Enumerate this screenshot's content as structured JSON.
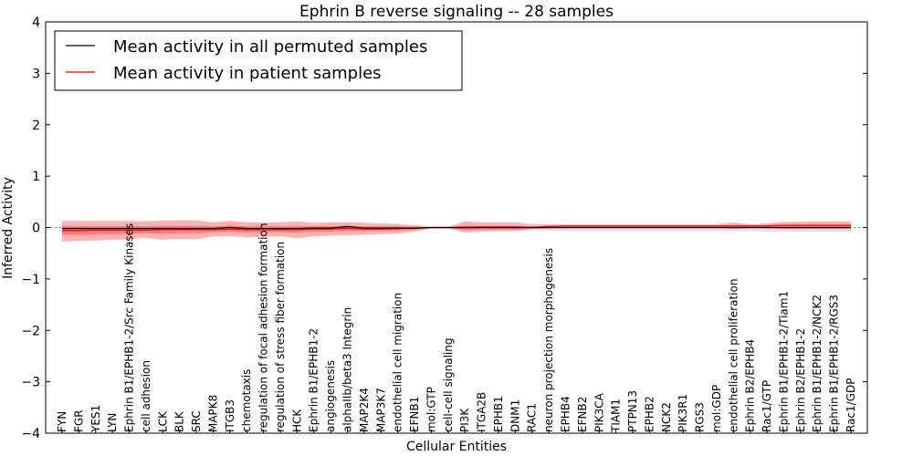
{
  "chart_data": {
    "type": "line",
    "title": "Ephrin B reverse signaling -- 28 samples",
    "xlabel": "Cellular Entities",
    "ylabel": "Inferred Activity",
    "ylim": [
      -4,
      4
    ],
    "yticks": [
      -4,
      -3,
      -2,
      -1,
      0,
      1,
      2,
      3,
      4
    ],
    "ytick_labels": [
      "−4",
      "−3",
      "−2",
      "−1",
      "0",
      "1",
      "2",
      "3",
      "4"
    ],
    "legend_position": "top-left",
    "categories": [
      "FYN",
      "FGR",
      "YES1",
      "LYN",
      "Ephrin B1/EPHB1-2/Src Family Kinases",
      "cell adhesion",
      "LCK",
      "BLK",
      "SRC",
      "MAPK8",
      "ITGB3",
      "chemotaxis",
      "regulation of focal adhesion formation",
      "regulation of stress fiber formation",
      "HCK",
      "Ephrin B1/EPHB1-2",
      "angiogenesis",
      "alphaIIb/beta3 Integrin",
      "MAP2K4",
      "MAP3K7",
      "endothelial cell migration",
      "EFNB1",
      "mol:GTP",
      "cell-cell signaling",
      "PI3K",
      "ITGA2B",
      "EPHB1",
      "DNM1",
      "RAC1",
      "neuron projection morphogenesis",
      "EPHB4",
      "EFNB2",
      "PIK3CA",
      "TIAM1",
      "PTPN13",
      "EPHB2",
      "NCK2",
      "PIK3R1",
      "RGS3",
      "mol:GDP",
      "endothelial cell proliferation",
      "Ephrin B2/EPHB4",
      "Rac1/GTP",
      "Ephrin B1/EPHB1-2/Tiam1",
      "Ephrin B2/EPHB1-2",
      "Ephrin B1/EPHB1-2/NCK2",
      "Ephrin B1/EPHB1-2/RGS3",
      "Rac1/GDP"
    ],
    "series": [
      {
        "name": "Mean activity in all permuted samples",
        "color": "#000000",
        "values": [
          -0.02,
          -0.02,
          -0.02,
          -0.02,
          -0.02,
          -0.02,
          -0.02,
          -0.02,
          -0.02,
          -0.02,
          0.0,
          -0.02,
          -0.02,
          -0.02,
          -0.02,
          -0.01,
          -0.01,
          0.02,
          -0.01,
          -0.01,
          -0.01,
          -0.01,
          0.0,
          0.0,
          0.0,
          0.0,
          0.0,
          0.0,
          0.0,
          0.0,
          0.0,
          0.0,
          0.0,
          0.0,
          0.0,
          0.0,
          0.0,
          0.0,
          0.0,
          0.0,
          0.0,
          0.0,
          0.0,
          0.0,
          0.0,
          0.0,
          0.0,
          0.0
        ]
      },
      {
        "name": "Mean activity in patient samples",
        "color": "#ff0000",
        "values": [
          -0.06,
          -0.06,
          -0.05,
          -0.05,
          -0.05,
          -0.05,
          -0.04,
          -0.04,
          -0.04,
          -0.04,
          -0.03,
          -0.04,
          -0.04,
          -0.04,
          -0.04,
          -0.03,
          -0.03,
          -0.01,
          -0.03,
          -0.03,
          -0.02,
          -0.01,
          0.0,
          0.0,
          0.0,
          0.01,
          0.01,
          0.01,
          0.0,
          0.02,
          0.03,
          0.03,
          0.03,
          0.03,
          0.03,
          0.03,
          0.03,
          0.03,
          0.03,
          0.03,
          0.03,
          0.03,
          0.03,
          0.04,
          0.04,
          0.04,
          0.04,
          0.04
        ]
      }
    ],
    "band_outer": {
      "upper": [
        0.13,
        0.13,
        0.13,
        0.13,
        0.13,
        0.12,
        0.14,
        0.14,
        0.14,
        0.1,
        0.13,
        0.1,
        0.1,
        0.1,
        0.12,
        0.09,
        0.1,
        0.1,
        0.09,
        0.08,
        0.07,
        0.05,
        0.01,
        0.01,
        0.12,
        0.1,
        0.1,
        0.1,
        0.07,
        0.06,
        0.06,
        0.06,
        0.06,
        0.06,
        0.06,
        0.06,
        0.06,
        0.06,
        0.06,
        0.06,
        0.1,
        0.06,
        0.08,
        0.11,
        0.11,
        0.12,
        0.12,
        0.12
      ],
      "lower": [
        -0.27,
        -0.26,
        -0.25,
        -0.24,
        -0.23,
        -0.2,
        -0.24,
        -0.22,
        -0.23,
        -0.17,
        -0.17,
        -0.19,
        -0.18,
        -0.17,
        -0.21,
        -0.17,
        -0.16,
        -0.15,
        -0.14,
        -0.13,
        -0.12,
        -0.08,
        -0.01,
        -0.01,
        -0.1,
        -0.08,
        -0.07,
        -0.07,
        -0.03,
        -0.02,
        -0.01,
        -0.01,
        -0.01,
        -0.01,
        -0.01,
        -0.01,
        -0.01,
        -0.01,
        -0.01,
        -0.01,
        -0.03,
        -0.01,
        -0.02,
        -0.03,
        -0.03,
        -0.03,
        -0.03,
        -0.03
      ]
    },
    "band_inner": {
      "upper": [
        0.02,
        0.02,
        0.02,
        0.02,
        0.02,
        0.02,
        0.03,
        0.03,
        0.03,
        0.02,
        0.04,
        0.02,
        0.02,
        0.02,
        0.02,
        0.02,
        0.02,
        0.04,
        0.02,
        0.02,
        0.02,
        0.01,
        0.0,
        0.0,
        0.04,
        0.03,
        0.03,
        0.03,
        0.02,
        0.03,
        0.04,
        0.04,
        0.04,
        0.04,
        0.04,
        0.04,
        0.04,
        0.04,
        0.04,
        0.04,
        0.05,
        0.04,
        0.05,
        0.06,
        0.06,
        0.06,
        0.06,
        0.06
      ],
      "lower": [
        -0.14,
        -0.14,
        -0.13,
        -0.13,
        -0.12,
        -0.11,
        -0.12,
        -0.11,
        -0.11,
        -0.09,
        -0.08,
        -0.1,
        -0.09,
        -0.09,
        -0.1,
        -0.08,
        -0.08,
        -0.06,
        -0.07,
        -0.07,
        -0.06,
        -0.04,
        0.0,
        0.0,
        -0.04,
        -0.03,
        -0.03,
        -0.03,
        -0.01,
        0.0,
        0.01,
        0.01,
        0.01,
        0.01,
        0.01,
        0.01,
        0.01,
        0.01,
        0.01,
        0.01,
        0.01,
        0.01,
        0.01,
        0.02,
        0.02,
        0.02,
        0.02,
        0.02
      ]
    },
    "band_gray": {
      "upper": [
        0.02,
        0.02,
        0.02,
        0.02,
        0.02,
        0.02,
        0.02,
        0.02,
        0.02,
        0.02,
        0.02,
        0.02,
        0.02,
        0.02,
        0.02,
        0.02,
        0.02,
        0.02,
        0.02,
        0.02,
        0.02,
        0.02,
        0.02,
        0.02,
        0.02,
        0.02,
        0.02,
        0.02,
        0.02,
        0.02,
        0.02,
        0.02,
        0.02,
        0.02,
        0.02,
        0.02,
        0.02,
        0.02,
        0.02,
        0.02,
        0.02,
        0.02,
        0.02,
        0.02,
        0.02,
        0.02,
        0.02,
        0.02
      ],
      "lower": [
        -0.04,
        -0.04,
        -0.04,
        -0.04,
        -0.04,
        -0.04,
        -0.04,
        -0.04,
        -0.04,
        -0.04,
        -0.04,
        -0.04,
        -0.04,
        -0.04,
        -0.04,
        -0.04,
        -0.04,
        -0.04,
        -0.04,
        -0.04,
        -0.04,
        -0.04,
        -0.03,
        -0.03,
        -0.04,
        -0.05,
        -0.05,
        -0.05,
        -0.05,
        -0.06,
        -0.07,
        -0.07,
        -0.07,
        -0.07,
        -0.07,
        -0.07,
        -0.07,
        -0.07,
        -0.07,
        -0.07,
        -0.07,
        -0.07,
        -0.08,
        -0.08,
        -0.08,
        -0.08,
        -0.08,
        -0.08
      ]
    },
    "colors": {
      "band_outer": "#ff0000",
      "band_inner": "#ff0000",
      "band_gray": "#a9a9c8",
      "axis": "#000000"
    }
  }
}
